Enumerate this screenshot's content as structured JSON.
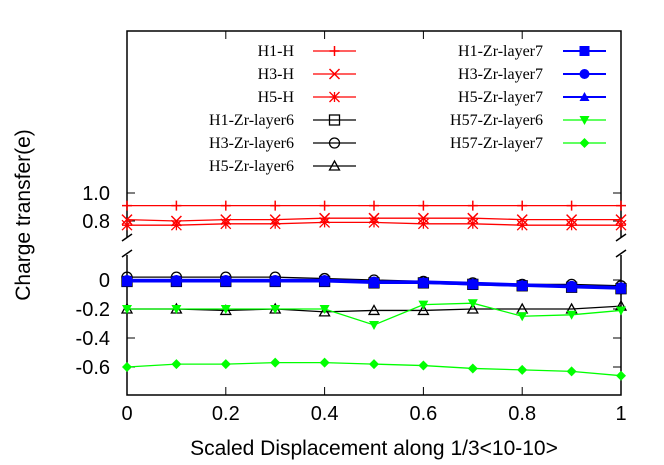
{
  "chart_data": {
    "type": "line",
    "xlabel": "Scaled Displacement along 1/3<10-10>",
    "ylabel": "Charge transfer(e)",
    "xlim": [
      0,
      1
    ],
    "x": [
      0,
      0.1,
      0.2,
      0.3,
      0.4,
      0.5,
      0.6,
      0.7,
      0.8,
      0.9,
      1.0
    ],
    "x_ticks": [
      "0",
      "0.2",
      "0.4",
      "0.6",
      "0.8",
      "1"
    ],
    "broken_axis": {
      "upper_ticks": [
        "1.0",
        "0.8"
      ],
      "lower_ticks": [
        "0",
        "-0.2",
        "-0.4",
        "-0.6"
      ],
      "upper_range": [
        0.7,
        1.05
      ],
      "lower_range": [
        -0.7,
        0.05
      ]
    },
    "grid": false,
    "legend_position": "top",
    "series": [
      {
        "name": "H1-H",
        "color": "#ff0000",
        "marker": "plus",
        "values": [
          0.91,
          0.91,
          0.91,
          0.91,
          0.91,
          0.91,
          0.91,
          0.91,
          0.91,
          0.91,
          0.91
        ]
      },
      {
        "name": "H3-H",
        "color": "#ff0000",
        "marker": "x",
        "values": [
          0.81,
          0.8,
          0.81,
          0.81,
          0.82,
          0.82,
          0.82,
          0.82,
          0.81,
          0.81,
          0.81
        ]
      },
      {
        "name": "H5-H",
        "color": "#ff0000",
        "marker": "star",
        "values": [
          0.77,
          0.77,
          0.78,
          0.78,
          0.79,
          0.79,
          0.78,
          0.78,
          0.77,
          0.77,
          0.77
        ]
      },
      {
        "name": "H1-Zr-layer6",
        "color": "#000000",
        "marker": "square-open",
        "values": [
          -0.01,
          -0.01,
          -0.01,
          -0.01,
          -0.01,
          -0.02,
          -0.02,
          -0.03,
          -0.04,
          -0.05,
          -0.06
        ]
      },
      {
        "name": "H3-Zr-layer6",
        "color": "#000000",
        "marker": "circle-open",
        "values": [
          0.02,
          0.02,
          0.02,
          0.02,
          0.01,
          0.0,
          -0.01,
          -0.02,
          -0.03,
          -0.03,
          -0.04
        ]
      },
      {
        "name": "H5-Zr-layer6",
        "color": "#000000",
        "marker": "triangle-open",
        "values": [
          -0.2,
          -0.2,
          -0.21,
          -0.2,
          -0.22,
          -0.21,
          -0.21,
          -0.2,
          -0.2,
          -0.2,
          -0.18
        ]
      },
      {
        "name": "H1-Zr-layer7",
        "color": "#0000ff",
        "marker": "square",
        "values": [
          -0.01,
          -0.01,
          -0.01,
          -0.01,
          -0.01,
          -0.02,
          -0.02,
          -0.03,
          -0.04,
          -0.05,
          -0.06
        ]
      },
      {
        "name": "H3-Zr-layer7",
        "color": "#0000ff",
        "marker": "circle",
        "values": [
          0.0,
          0.0,
          0.0,
          0.0,
          0.0,
          -0.01,
          -0.02,
          -0.03,
          -0.04,
          -0.04,
          -0.05
        ]
      },
      {
        "name": "H5-Zr-layer7",
        "color": "#0000ff",
        "marker": "triangle",
        "values": [
          0.0,
          0.0,
          0.0,
          0.0,
          0.0,
          -0.01,
          -0.01,
          -0.02,
          -0.03,
          -0.04,
          -0.05
        ]
      },
      {
        "name": "H57-Zr-layer6",
        "color": "#00ff00",
        "marker": "triangle-down",
        "values": [
          -0.2,
          -0.2,
          -0.2,
          -0.2,
          -0.2,
          -0.31,
          -0.17,
          -0.16,
          -0.25,
          -0.24,
          -0.21
        ]
      },
      {
        "name": "H57-Zr-layer7",
        "color": "#00ff00",
        "marker": "diamond",
        "values": [
          -0.6,
          -0.58,
          -0.58,
          -0.57,
          -0.57,
          -0.58,
          -0.59,
          -0.61,
          -0.62,
          -0.63,
          -0.66
        ]
      }
    ]
  }
}
